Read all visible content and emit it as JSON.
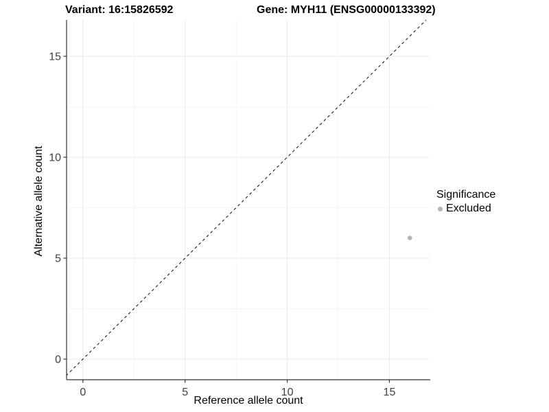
{
  "header": {
    "variant_title": "Variant: 16:15826592",
    "gene_title": "Gene: MYH11 (ENSG00000133392)"
  },
  "legend": {
    "title": "Significance",
    "items": [
      {
        "label": "Excluded",
        "color": "#b5b5b5"
      }
    ]
  },
  "chart_data": {
    "type": "scatter",
    "title": "Variant: 16:15826592  |  Gene: MYH11 (ENSG00000133392)",
    "xlabel": "Reference allele count",
    "ylabel": "Alternative allele count",
    "xlim": [
      -0.8,
      17.0
    ],
    "ylim": [
      -1.02,
      16.8
    ],
    "xticks": [
      0,
      5,
      10,
      15
    ],
    "yticks": [
      0,
      5,
      10,
      15
    ],
    "minor_xticks": [
      2.5,
      7.5,
      12.5
    ],
    "minor_yticks": [
      2.5,
      7.5,
      12.5
    ],
    "grid": true,
    "legend_position": "right",
    "series": [
      {
        "name": "Excluded",
        "color": "#b5b5b5",
        "points": [
          {
            "x": 16,
            "y": 6
          }
        ]
      }
    ],
    "reference_line": {
      "type": "identity",
      "label": "y = x",
      "style": "dashed",
      "color": "#1a1a1a"
    },
    "colors": {
      "axis_line": "#333333",
      "tick_label": "#404040",
      "grid_major": "#e9e9e9",
      "grid_minor": "#f4f4f4"
    }
  }
}
